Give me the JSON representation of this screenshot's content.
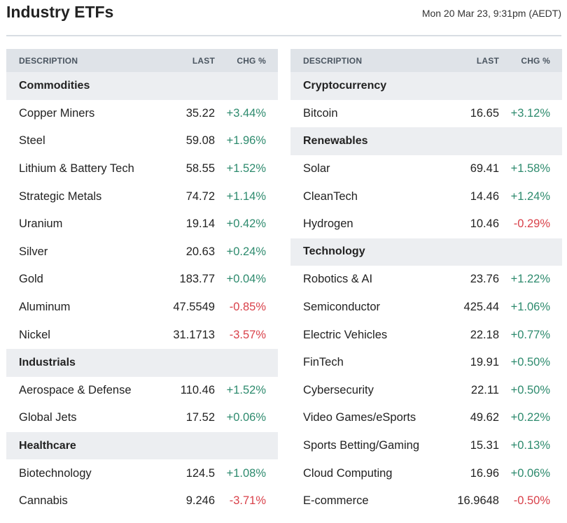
{
  "header": {
    "title": "Industry ETFs",
    "timestamp": "Mon 20 Mar 23, 9:31pm (AEDT)"
  },
  "columns": {
    "description": "DESCRIPTION",
    "last": "LAST",
    "change": "CHG %"
  },
  "colors": {
    "positive": "#2e8b6e",
    "negative": "#d9414a",
    "header_bg": "#dfe3e8",
    "category_bg": "#eceef1"
  },
  "left_panel": [
    {
      "type": "category",
      "name": "Commodities"
    },
    {
      "type": "row",
      "desc": "Copper Miners",
      "last": "35.22",
      "chg": "+3.44%",
      "dir": "pos"
    },
    {
      "type": "row",
      "desc": "Steel",
      "last": "59.08",
      "chg": "+1.96%",
      "dir": "pos"
    },
    {
      "type": "row",
      "desc": "Lithium & Battery Tech",
      "last": "58.55",
      "chg": "+1.52%",
      "dir": "pos"
    },
    {
      "type": "row",
      "desc": "Strategic Metals",
      "last": "74.72",
      "chg": "+1.14%",
      "dir": "pos"
    },
    {
      "type": "row",
      "desc": "Uranium",
      "last": "19.14",
      "chg": "+0.42%",
      "dir": "pos"
    },
    {
      "type": "row",
      "desc": "Silver",
      "last": "20.63",
      "chg": "+0.24%",
      "dir": "pos"
    },
    {
      "type": "row",
      "desc": "Gold",
      "last": "183.77",
      "chg": "+0.04%",
      "dir": "pos"
    },
    {
      "type": "row",
      "desc": "Aluminum",
      "last": "47.5549",
      "chg": "-0.85%",
      "dir": "neg"
    },
    {
      "type": "row",
      "desc": "Nickel",
      "last": "31.1713",
      "chg": "-3.57%",
      "dir": "neg"
    },
    {
      "type": "category",
      "name": "Industrials"
    },
    {
      "type": "row",
      "desc": "Aerospace & Defense",
      "last": "110.46",
      "chg": "+1.52%",
      "dir": "pos"
    },
    {
      "type": "row",
      "desc": "Global Jets",
      "last": "17.52",
      "chg": "+0.06%",
      "dir": "pos"
    },
    {
      "type": "category",
      "name": "Healthcare"
    },
    {
      "type": "row",
      "desc": "Biotechnology",
      "last": "124.5",
      "chg": "+1.08%",
      "dir": "pos"
    },
    {
      "type": "row",
      "desc": "Cannabis",
      "last": "9.246",
      "chg": "-3.71%",
      "dir": "neg"
    }
  ],
  "right_panel": [
    {
      "type": "category",
      "name": "Cryptocurrency"
    },
    {
      "type": "row",
      "desc": "Bitcoin",
      "last": "16.65",
      "chg": "+3.12%",
      "dir": "pos"
    },
    {
      "type": "category",
      "name": "Renewables"
    },
    {
      "type": "row",
      "desc": "Solar",
      "last": "69.41",
      "chg": "+1.58%",
      "dir": "pos"
    },
    {
      "type": "row",
      "desc": "CleanTech",
      "last": "14.46",
      "chg": "+1.24%",
      "dir": "pos"
    },
    {
      "type": "row",
      "desc": "Hydrogen",
      "last": "10.46",
      "chg": "-0.29%",
      "dir": "neg"
    },
    {
      "type": "category",
      "name": "Technology"
    },
    {
      "type": "row",
      "desc": "Robotics & AI",
      "last": "23.76",
      "chg": "+1.22%",
      "dir": "pos"
    },
    {
      "type": "row",
      "desc": "Semiconductor",
      "last": "425.44",
      "chg": "+1.06%",
      "dir": "pos"
    },
    {
      "type": "row",
      "desc": "Electric Vehicles",
      "last": "22.18",
      "chg": "+0.77%",
      "dir": "pos"
    },
    {
      "type": "row",
      "desc": "FinTech",
      "last": "19.91",
      "chg": "+0.50%",
      "dir": "pos"
    },
    {
      "type": "row",
      "desc": "Cybersecurity",
      "last": "22.11",
      "chg": "+0.50%",
      "dir": "pos"
    },
    {
      "type": "row",
      "desc": "Video Games/eSports",
      "last": "49.62",
      "chg": "+0.22%",
      "dir": "pos"
    },
    {
      "type": "row",
      "desc": "Sports Betting/Gaming",
      "last": "15.31",
      "chg": "+0.13%",
      "dir": "pos"
    },
    {
      "type": "row",
      "desc": "Cloud Computing",
      "last": "16.96",
      "chg": "+0.06%",
      "dir": "pos"
    },
    {
      "type": "row",
      "desc": "E-commerce",
      "last": "16.9648",
      "chg": "-0.50%",
      "dir": "neg"
    }
  ]
}
